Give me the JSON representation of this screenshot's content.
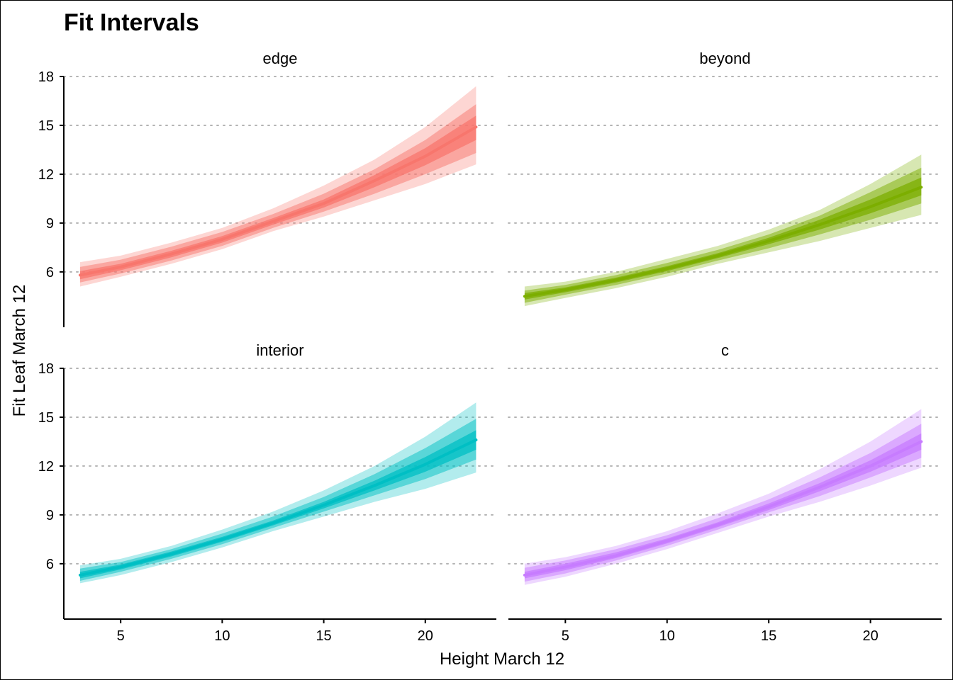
{
  "chart_data": {
    "type": "line",
    "title": "Fit Intervals",
    "xlabel": "Height March 12",
    "ylabel": "Fit Leaf March 12",
    "xlim": [
      2.2,
      23.5
    ],
    "ylim": [
      2.6,
      18.0
    ],
    "x_ticks": [
      5,
      10,
      15,
      20
    ],
    "y_ticks": [
      6,
      9,
      12,
      15,
      18
    ],
    "grid": "horizontal dotted",
    "legend": "none",
    "interval_opacities": [
      0.3,
      0.5,
      0.75
    ],
    "panels": [
      {
        "label": "edge",
        "color": "#F8766D",
        "x": [
          3,
          5,
          7.5,
          10,
          12.5,
          15,
          17.5,
          20,
          22.5
        ],
        "fit": [
          5.8,
          6.3,
          7.1,
          8.0,
          9.1,
          10.2,
          11.6,
          13.1,
          14.9
        ],
        "intervals": [
          {
            "lower": [
              5.1,
              5.7,
              6.5,
              7.4,
              8.5,
              9.4,
              10.4,
              11.4,
              12.6
            ],
            "upper": [
              6.6,
              7.0,
              7.8,
              8.7,
              9.9,
              11.3,
              12.9,
              14.9,
              17.4
            ]
          },
          {
            "lower": [
              5.35,
              5.9,
              6.7,
              7.6,
              8.7,
              9.7,
              10.8,
              12.0,
              13.3
            ],
            "upper": [
              6.3,
              6.75,
              7.55,
              8.45,
              9.55,
              10.8,
              12.3,
              14.1,
              16.3
            ]
          },
          {
            "lower": [
              5.55,
              6.1,
              6.9,
              7.8,
              8.9,
              9.95,
              11.2,
              12.55,
              14.1
            ],
            "upper": [
              6.05,
              6.5,
              7.3,
              8.2,
              9.3,
              10.45,
              11.95,
              13.6,
              15.6
            ]
          }
        ]
      },
      {
        "label": "beyond",
        "color": "#7CAE00",
        "x": [
          3,
          5,
          7.5,
          10,
          12.5,
          15,
          17.5,
          20,
          22.5
        ],
        "fit": [
          4.5,
          4.9,
          5.5,
          6.2,
          7.0,
          7.9,
          8.9,
          10.0,
          11.2
        ],
        "intervals": [
          {
            "lower": [
              3.9,
              4.4,
              5.0,
              5.7,
              6.5,
              7.2,
              7.9,
              8.7,
              9.5
            ],
            "upper": [
              5.1,
              5.4,
              6.0,
              6.8,
              7.6,
              8.6,
              9.8,
              11.4,
              13.2
            ]
          },
          {
            "lower": [
              4.1,
              4.6,
              5.2,
              5.9,
              6.7,
              7.45,
              8.3,
              9.2,
              10.2
            ],
            "upper": [
              4.85,
              5.2,
              5.8,
              6.55,
              7.35,
              8.3,
              9.45,
              10.9,
              12.4
            ]
          },
          {
            "lower": [
              4.3,
              4.75,
              5.35,
              6.05,
              6.85,
              7.7,
              8.6,
              9.6,
              10.7
            ],
            "upper": [
              4.7,
              5.05,
              5.65,
              6.35,
              7.15,
              8.1,
              9.2,
              10.45,
              11.8
            ]
          }
        ]
      },
      {
        "label": "interior",
        "color": "#00BFC4",
        "x": [
          3,
          5,
          7.5,
          10,
          12.5,
          15,
          17.5,
          20,
          22.5
        ],
        "fit": [
          5.3,
          5.8,
          6.6,
          7.5,
          8.5,
          9.6,
          10.8,
          12.1,
          13.6
        ],
        "intervals": [
          {
            "lower": [
              4.8,
              5.3,
              6.1,
              7.0,
              8.0,
              8.9,
              9.8,
              10.6,
              11.6
            ],
            "upper": [
              5.9,
              6.3,
              7.1,
              8.1,
              9.2,
              10.5,
              12.0,
              13.8,
              15.9
            ]
          },
          {
            "lower": [
              4.95,
              5.5,
              6.3,
              7.2,
              8.2,
              9.2,
              10.2,
              11.2,
              12.4
            ],
            "upper": [
              5.7,
              6.1,
              6.9,
              7.85,
              8.9,
              10.1,
              11.5,
              13.1,
              14.9
            ]
          },
          {
            "lower": [
              5.1,
              5.65,
              6.45,
              7.35,
              8.35,
              9.4,
              10.5,
              11.65,
              13.0
            ],
            "upper": [
              5.5,
              5.95,
              6.75,
              7.65,
              8.65,
              9.8,
              11.1,
              12.55,
              14.2
            ]
          }
        ]
      },
      {
        "label": "c",
        "color": "#C77CFF",
        "x": [
          3,
          5,
          7.5,
          10,
          12.5,
          15,
          17.5,
          20,
          22.5
        ],
        "fit": [
          5.3,
          5.8,
          6.5,
          7.4,
          8.4,
          9.5,
          10.7,
          12.0,
          13.5
        ],
        "intervals": [
          {
            "lower": [
              4.7,
              5.2,
              6.0,
              6.9,
              7.9,
              8.9,
              9.8,
              10.8,
              11.9
            ],
            "upper": [
              6.0,
              6.4,
              7.1,
              8.0,
              9.1,
              10.3,
              11.8,
              13.5,
              15.5
            ]
          },
          {
            "lower": [
              4.9,
              5.4,
              6.2,
              7.1,
              8.1,
              9.15,
              10.15,
              11.3,
              12.5
            ],
            "upper": [
              5.75,
              6.2,
              6.9,
              7.75,
              8.8,
              9.95,
              11.3,
              12.8,
              14.6
            ]
          },
          {
            "lower": [
              5.1,
              5.6,
              6.35,
              7.25,
              8.25,
              9.3,
              10.45,
              11.65,
              13.0
            ],
            "upper": [
              5.5,
              6.0,
              6.7,
              7.55,
              8.55,
              9.7,
              10.95,
              12.35,
              14.0
            ]
          }
        ]
      }
    ]
  }
}
